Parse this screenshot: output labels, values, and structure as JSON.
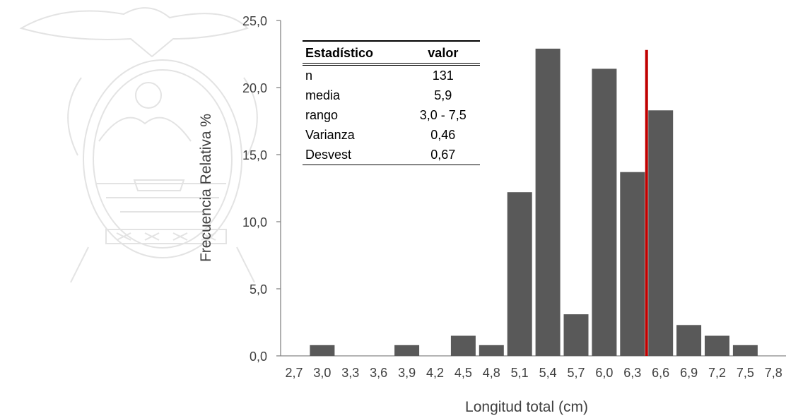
{
  "chart_data": {
    "type": "bar",
    "xlabel": "Longitud total (cm)",
    "ylabel": "Frecuencia Relativa %",
    "ylim": [
      0,
      25
    ],
    "yticks": [
      "0,0",
      "5,0",
      "10,0",
      "15,0",
      "20,0",
      "25,0"
    ],
    "categories": [
      "2,7",
      "3,0",
      "3,3",
      "3,6",
      "3,9",
      "4,2",
      "4,5",
      "4,8",
      "5,1",
      "5,4",
      "5,7",
      "6,0",
      "6,3",
      "6,6",
      "6,9",
      "7,2",
      "7,5",
      "7,8"
    ],
    "values": [
      0,
      0.8,
      0,
      0,
      0.8,
      0,
      1.5,
      0.8,
      12.2,
      22.9,
      3.1,
      21.4,
      13.7,
      18.3,
      2.3,
      1.5,
      0.8,
      0
    ],
    "reference_line": {
      "x": 6.45,
      "color": "#c00000",
      "y_top": 22.8
    },
    "grid": false,
    "bar_color": "#595959"
  },
  "stats_table": {
    "headers": [
      "Estadístico",
      "valor"
    ],
    "rows": [
      [
        "n",
        "131"
      ],
      [
        "media",
        "5,9"
      ],
      [
        "rango",
        "3,0 - 7,5"
      ],
      [
        "Varianza",
        "0,46"
      ],
      [
        "Desvest",
        "0,67"
      ]
    ]
  },
  "watermark": {
    "icon": "ecuador-coat-of-arms-icon"
  }
}
